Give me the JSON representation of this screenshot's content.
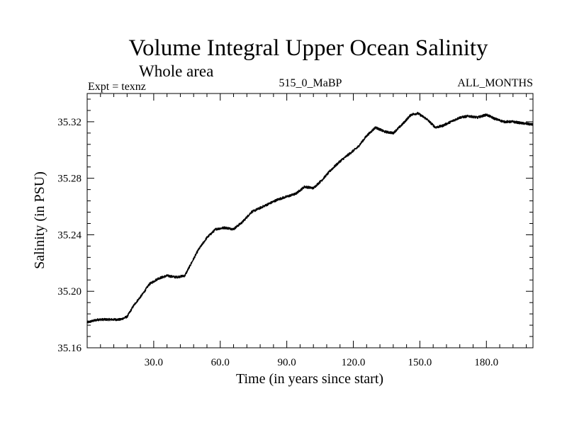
{
  "colors": {
    "background": "#ffffff",
    "line": "#000000",
    "axis": "#000000"
  },
  "chart_data": {
    "type": "line",
    "title": "Volume Integral Upper Ocean Salinity",
    "subtitle": "Whole area",
    "annotations": {
      "left": "Expt = texnz",
      "center": "515_0_MaBP",
      "right": "ALL_MONTHS"
    },
    "xlabel": "Time (in years since start)",
    "ylabel": "Salinity (in PSU)",
    "xlim": [
      0,
      201
    ],
    "ylim": [
      35.16,
      35.34
    ],
    "xticks": [
      30,
      60,
      90,
      120,
      150,
      180
    ],
    "xtick_labels": [
      "30.0",
      "60.0",
      "90.0",
      "120.0",
      "150.0",
      "180.0"
    ],
    "yticks": [
      35.16,
      35.2,
      35.24,
      35.28,
      35.32
    ],
    "ytick_labels": [
      "35.16",
      "35.20",
      "35.24",
      "35.28",
      "35.32"
    ],
    "grid": false,
    "noise_amplitude": 0.0008,
    "series": [
      {
        "name": "salinity",
        "x": [
          0,
          5,
          10,
          15,
          18,
          21,
          25,
          28,
          32,
          36,
          40,
          44,
          47,
          50,
          54,
          58,
          62,
          66,
          70,
          74,
          78,
          82,
          86,
          90,
          94,
          98,
          102,
          106,
          110,
          114,
          118,
          122,
          126,
          130,
          134,
          138,
          142,
          146,
          149,
          153,
          157,
          160,
          164,
          168,
          172,
          176,
          180,
          184,
          188,
          192,
          196,
          201
        ],
        "y": [
          35.178,
          35.18,
          35.18,
          35.18,
          35.182,
          35.19,
          35.198,
          35.205,
          35.209,
          35.211,
          35.21,
          35.211,
          35.22,
          35.229,
          35.238,
          35.244,
          35.245,
          35.244,
          35.249,
          35.256,
          35.259,
          35.262,
          35.265,
          35.267,
          35.269,
          35.274,
          35.273,
          35.279,
          35.286,
          35.292,
          35.297,
          35.302,
          35.31,
          35.316,
          35.313,
          35.312,
          35.318,
          35.325,
          35.326,
          35.322,
          35.316,
          35.317,
          35.32,
          35.323,
          35.324,
          35.323,
          35.325,
          35.322,
          35.32,
          35.32,
          35.319,
          35.318
        ]
      }
    ]
  }
}
